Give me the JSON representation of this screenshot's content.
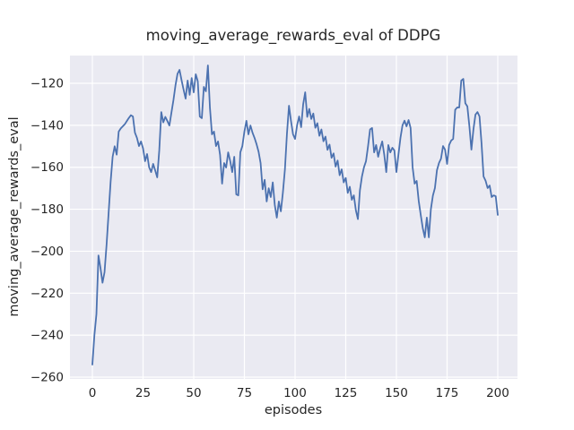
{
  "figure": {
    "title": "moving_average_rewards_eval of DDPG",
    "xlabel": "episodes",
    "ylabel": "moving_average_rewards_eval"
  },
  "chart_data": {
    "type": "line",
    "title": "moving_average_rewards_eval of DDPG",
    "xlabel": "episodes",
    "ylabel": "moving_average_rewards_eval",
    "legend": null,
    "grid": true,
    "style": "seaborn-darkgrid",
    "axes_background_color": "#eaeaf2",
    "gridline_color": "#ffffff",
    "line_color": "#4c72b0",
    "text_color": "#262626",
    "x_ticks": [
      0,
      25,
      50,
      75,
      100,
      125,
      150,
      175,
      200
    ],
    "y_ticks": [
      -120,
      -140,
      -160,
      -180,
      -200,
      -220,
      -240,
      -260
    ],
    "xlim": [
      -11.06,
      209.74
    ],
    "ylim": [
      -260.85,
      -106.77
    ],
    "series": [
      {
        "name": "moving_average_rewards_eval",
        "x": [
          0,
          1,
          2,
          3,
          4,
          5,
          6,
          7,
          8,
          9,
          10,
          11,
          12,
          13,
          14,
          15,
          16,
          17,
          18,
          19,
          20,
          21,
          22,
          23,
          24,
          25,
          26,
          27,
          28,
          29,
          30,
          31,
          32,
          33,
          34,
          35,
          36,
          37,
          38,
          39,
          40,
          41,
          42,
          43,
          44,
          45,
          46,
          47,
          48,
          49,
          50,
          51,
          52,
          53,
          54,
          55,
          56,
          57,
          58,
          59,
          60,
          61,
          62,
          63,
          64,
          65,
          66,
          67,
          68,
          69,
          70,
          71,
          72,
          73,
          74,
          75,
          76,
          77,
          78,
          79,
          80,
          81,
          82,
          83,
          84,
          85,
          86,
          87,
          88,
          89,
          90,
          91,
          92,
          93,
          94,
          95,
          96,
          97,
          98,
          99,
          100,
          101,
          102,
          103,
          104,
          105,
          106,
          107,
          108,
          109,
          110,
          111,
          112,
          113,
          114,
          115,
          116,
          117,
          118,
          119,
          120,
          121,
          122,
          123,
          124,
          125,
          126,
          127,
          128,
          129,
          130,
          131,
          132,
          133,
          134,
          135,
          136,
          137,
          138,
          139,
          140,
          141,
          142,
          143,
          144,
          145,
          146,
          147,
          148,
          149,
          150,
          151,
          152,
          153,
          154,
          155,
          156,
          157,
          158,
          159,
          160,
          161,
          162,
          163,
          164,
          165,
          166,
          167,
          168,
          169,
          170,
          171,
          172,
          173,
          174,
          175,
          176,
          177,
          178,
          179,
          180,
          181,
          182,
          183,
          184,
          185,
          186,
          187,
          188,
          189,
          190,
          191,
          192,
          193,
          194,
          195,
          196,
          197,
          198,
          199,
          200
        ],
        "y": [
          -254,
          -240,
          -230,
          -202,
          -208,
          -215,
          -210,
          -197,
          -182,
          -167,
          -155,
          -150,
          -154,
          -143,
          -141.5,
          -140.5,
          -139.5,
          -138,
          -136.5,
          -135.2,
          -135.8,
          -143.5,
          -146,
          -149.9,
          -147.7,
          -151,
          -157.1,
          -153.7,
          -160,
          -162.3,
          -158.4,
          -161.5,
          -164.8,
          -152,
          -133.7,
          -138.6,
          -136,
          -138,
          -140.1,
          -134,
          -128,
          -121,
          -115.5,
          -113.6,
          -118.5,
          -123,
          -127.3,
          -118.7,
          -125.5,
          -117.5,
          -124.3,
          -115.7,
          -119,
          -135.8,
          -136.6,
          -121.7,
          -123.8,
          -111.5,
          -131.6,
          -144.3,
          -143,
          -149.9,
          -147.7,
          -154.1,
          -167.8,
          -158,
          -160.1,
          -152.9,
          -157,
          -162.3,
          -155,
          -172.9,
          -173.4,
          -152.9,
          -149.9,
          -143,
          -137.9,
          -144.3,
          -140.1,
          -143.5,
          -146,
          -149,
          -152.6,
          -158,
          -170.5,
          -166,
          -176.3,
          -170,
          -174.2,
          -167.2,
          -178,
          -184,
          -176.3,
          -181,
          -172,
          -161,
          -144,
          -130.7,
          -138,
          -144.3,
          -146.5,
          -140,
          -135.8,
          -140.9,
          -130,
          -124.3,
          -136,
          -132.2,
          -137,
          -134.4,
          -141.2,
          -139,
          -145,
          -142,
          -147.6,
          -145.4,
          -151.7,
          -149.2,
          -155.5,
          -153.4,
          -159.7,
          -156.8,
          -163.8,
          -161,
          -167.2,
          -165.1,
          -172.2,
          -169.3,
          -175.5,
          -173.4,
          -180.5,
          -184.7,
          -171,
          -164.4,
          -160,
          -157.1,
          -150,
          -142,
          -141.3,
          -152.9,
          -149.4,
          -155,
          -151,
          -147.7,
          -154,
          -162.3,
          -149.4,
          -152.9,
          -150.7,
          -152,
          -162.3,
          -154,
          -146,
          -140,
          -137.8,
          -140.5,
          -137.5,
          -141.3,
          -160.1,
          -167.8,
          -166.5,
          -176,
          -182.7,
          -189,
          -193.4,
          -184,
          -193.4,
          -180,
          -173.5,
          -169.9,
          -161.4,
          -158,
          -155.9,
          -149.9,
          -151.6,
          -158.4,
          -149.4,
          -147.3,
          -146.5,
          -132.6,
          -131.5,
          -131.5,
          -118.7,
          -117.9,
          -129.5,
          -131,
          -140.4,
          -151.6,
          -142,
          -134.9,
          -133.7,
          -135.8,
          -148.6,
          -164.4,
          -166.4,
          -169.9,
          -168.7,
          -174.2,
          -173.4,
          -173.8,
          -182.7
        ]
      }
    ]
  }
}
